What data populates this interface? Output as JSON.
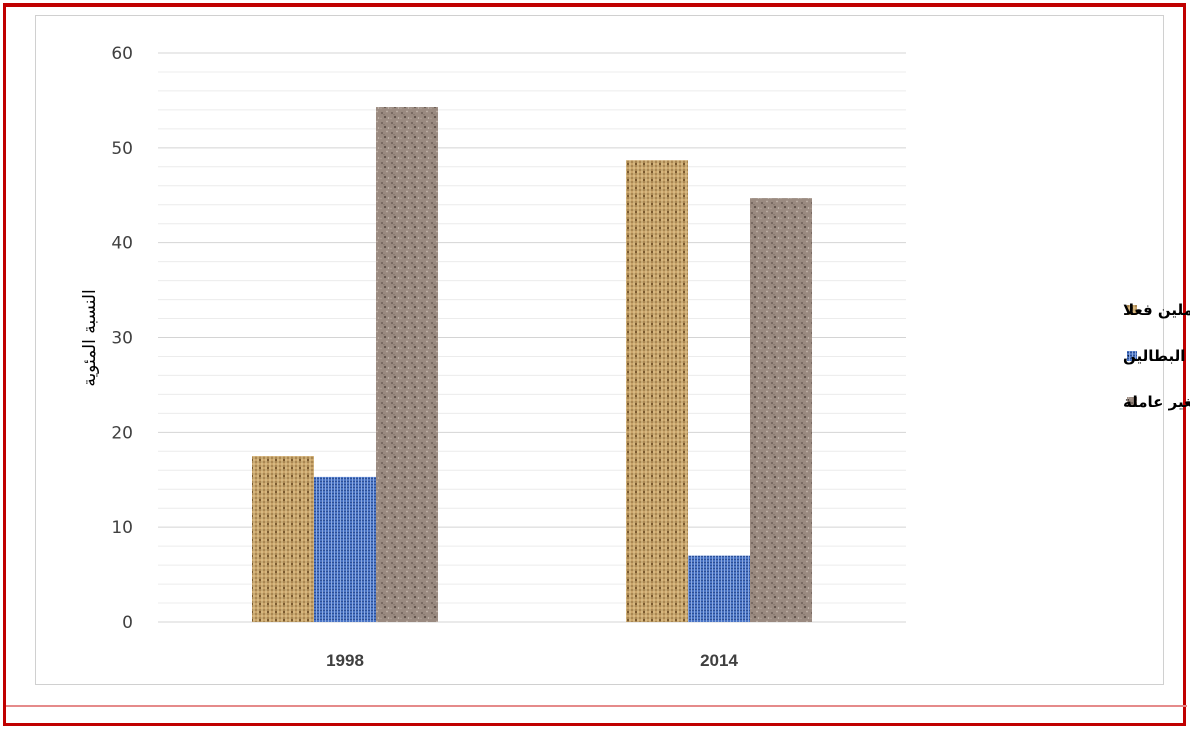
{
  "chart_data": {
    "type": "bar",
    "categories": [
      "1998",
      "2014"
    ],
    "series": [
      {
        "name": "فئة العاملين فعلا",
        "values": [
          17.5,
          48.7
        ],
        "color": "#c9a46a",
        "pattern": "burlap"
      },
      {
        "name": "فئة البطالين",
        "values": [
          15.3,
          7.0
        ],
        "color": "#4a74c4",
        "pattern": "denim"
      },
      {
        "name": "فئة القوى الغير عاملة",
        "values": [
          54.3,
          44.7
        ],
        "color": "#9a8a80",
        "pattern": "granite"
      }
    ],
    "ylabel": "النسبة المئوية",
    "xlabel": "",
    "ylim": [
      0,
      60
    ],
    "yticks": [
      "0",
      "10",
      "20",
      "30",
      "40",
      "50",
      "60"
    ],
    "grid": true,
    "minor_grid": true,
    "legend_position": "right"
  }
}
